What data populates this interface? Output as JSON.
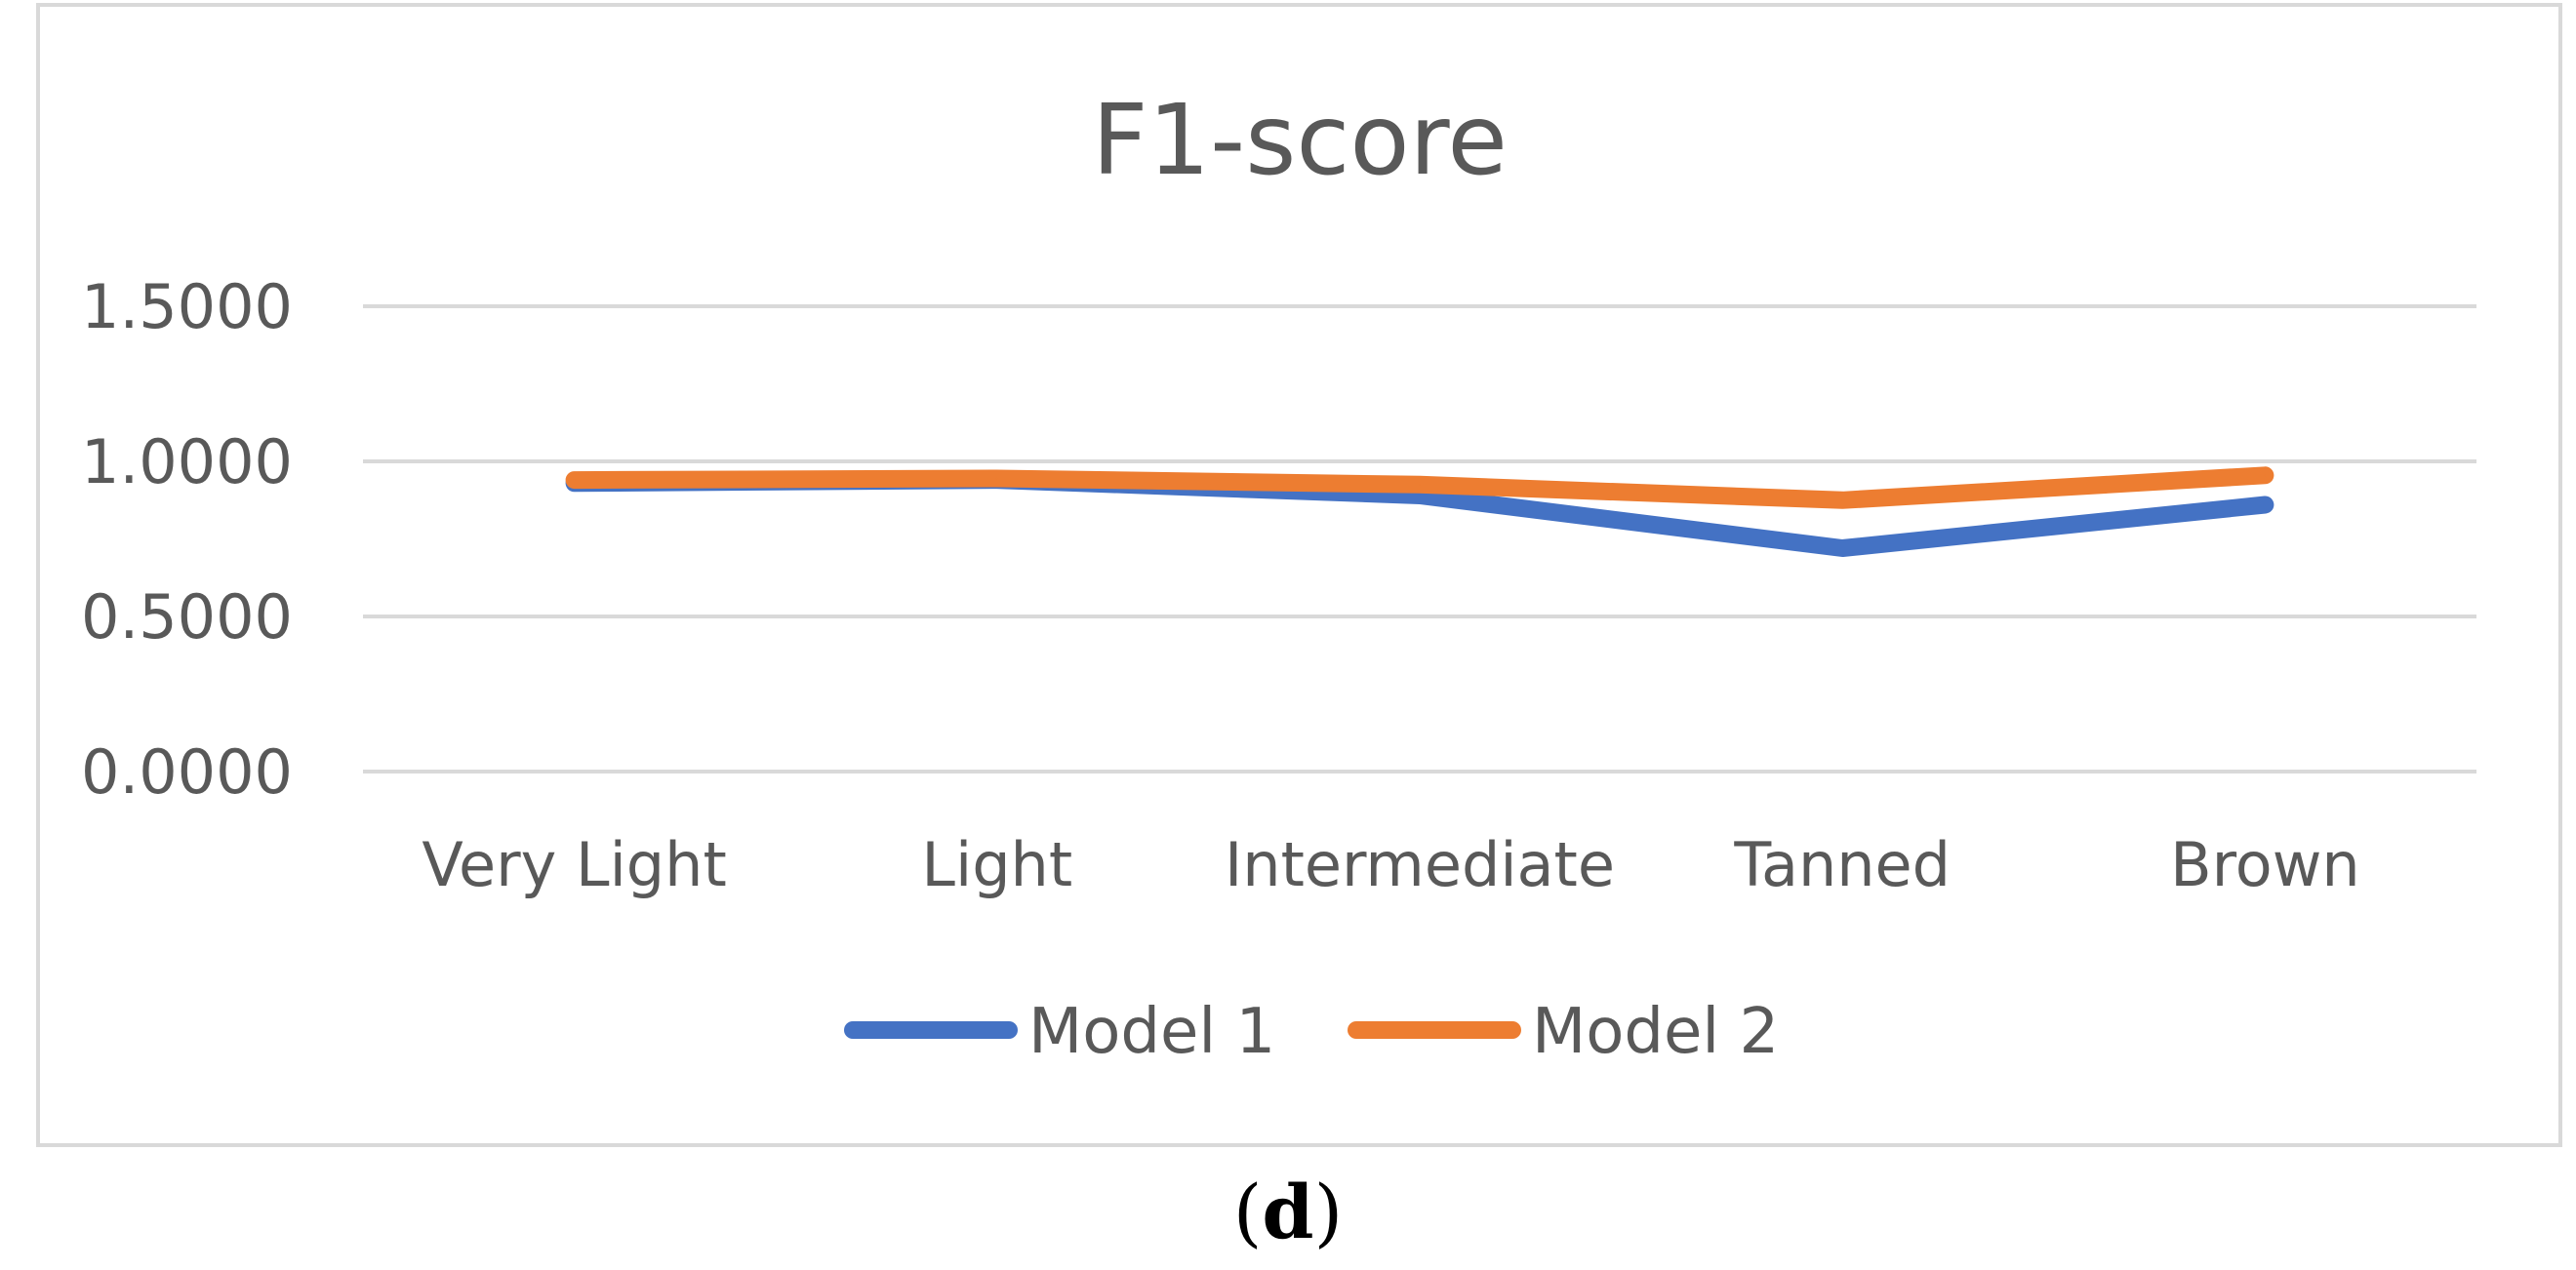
{
  "chart_data": {
    "type": "line",
    "title": "F1-score",
    "categories": [
      "Very Light",
      "Light",
      "Intermediate",
      "Tanned",
      "Brown"
    ],
    "series": [
      {
        "name": "Model 1",
        "color": "#4472c4",
        "values": [
          0.93,
          0.94,
          0.89,
          0.72,
          0.86
        ]
      },
      {
        "name": "Model 2",
        "color": "#ed7d31",
        "values": [
          0.94,
          0.945,
          0.925,
          0.875,
          0.955
        ]
      }
    ],
    "yticks": [
      "0.0000",
      "0.5000",
      "1.0000",
      "1.5000"
    ],
    "ytick_values": [
      0,
      0.5,
      1.0,
      1.5
    ],
    "ylim": [
      0,
      1.5
    ],
    "grid": true,
    "legend": "bottom",
    "xlabel": "",
    "ylabel": ""
  },
  "caption": {
    "open": "(",
    "letter": "d",
    "close": ")"
  }
}
